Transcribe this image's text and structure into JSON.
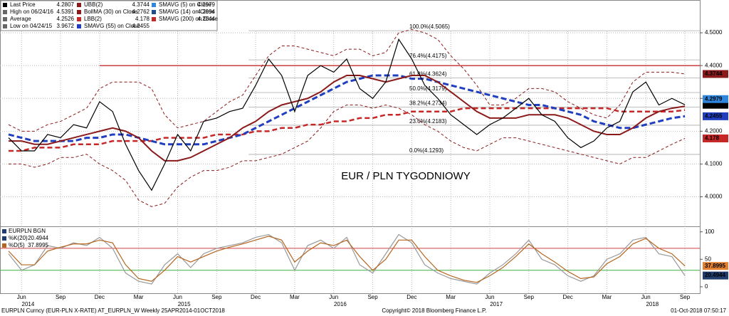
{
  "chart_data": [
    {
      "type": "line",
      "annotation": "EUR / PLN TYGODNIOWY",
      "categories": [
        null,
        "Jun",
        null,
        null,
        "Sep",
        null,
        null,
        "Dec",
        null,
        null,
        "Mar",
        null,
        null,
        "Jun",
        null,
        null,
        "Sep",
        null,
        null,
        "Dec",
        null,
        null,
        "Mar",
        null,
        null,
        "Jun",
        null,
        null,
        "Sep",
        null,
        null,
        "Dec",
        null,
        null,
        "Mar",
        null,
        null,
        "Jun",
        null,
        null,
        "Sep",
        null,
        null,
        "Dec",
        null,
        null,
        "Mar",
        null,
        null,
        "Jun",
        null,
        null,
        "Sep"
      ],
      "years": [
        "2014",
        "2015",
        "2016",
        "2017",
        "2018"
      ],
      "ylim": [
        3.91,
        4.6
      ],
      "yticks": [
        {
          "value": 4.0,
          "label": "4.0000"
        },
        {
          "value": 4.1,
          "label": "4.1000"
        },
        {
          "value": 4.2,
          "label": "4.2000"
        },
        {
          "value": 4.3,
          "label": "4.3000"
        },
        {
          "value": 4.4,
          "label": "4.4000"
        },
        {
          "value": 4.5,
          "label": "4.5000"
        }
      ],
      "grid": true,
      "hline": {
        "value": 4.4,
        "color": "#c00000"
      },
      "legend": [
        {
          "label": "Last Price",
          "value": 4.2807,
          "color": "#000000",
          "tag_color": "#000000"
        },
        {
          "label": "High on 06/24/16",
          "value": 4.5391,
          "color": "#666666"
        },
        {
          "label": "Average",
          "value": 4.2526,
          "color": "#666666"
        },
        {
          "label": "Low on 04/24/15",
          "value": 3.9672,
          "color": "#666666"
        },
        {
          "label": "UBB(2)",
          "value": 4.3744,
          "color": "#8b1a1a",
          "tag_color": "#8b1a1a"
        },
        {
          "label": "BollMA (30) on Close",
          "value": 4.2762,
          "color": "#8b1a1a"
        },
        {
          "label": "LBB(2)",
          "value": 4.178,
          "color": "#c62828",
          "tag_color": "#c62828"
        },
        {
          "label": "SMAVG (55) on Close",
          "value": 4.2455,
          "color": "#1f3fbf",
          "tag_color": "#1f3fbf"
        },
        {
          "label": "SMAVG (5) on Close",
          "value": 4.2979,
          "color": "#2e86de",
          "tag_color": "#2e86de"
        },
        {
          "label": "SMAVG (14) on Close",
          "value": 4.2994,
          "color": "#1a4f8b"
        },
        {
          "label": "SMAVG (200) on Close",
          "value": 4.2644,
          "color": "#c62828"
        }
      ],
      "fib_levels": [
        {
          "label": "100.0%(4.5065)",
          "value": 4.5065,
          "color": "#a01010"
        },
        {
          "label": "76.4%(4.4175)",
          "value": 4.4175,
          "color": "#999999"
        },
        {
          "label": "61.8%(4.3624)",
          "value": 4.3624,
          "color": "#2ca02c"
        },
        {
          "label": "50.0%(4.3179)",
          "value": 4.3179,
          "color": "#17a2b8"
        },
        {
          "label": "38.2%(4.2734)",
          "value": 4.2734,
          "color": "#2ca02c"
        },
        {
          "label": "23.6%(4.2183)",
          "value": 4.2183,
          "color": "#999999"
        },
        {
          "label": "0.0%(4.1293)",
          "value": 4.1293,
          "color": "#a01010"
        }
      ],
      "series": [
        {
          "color": "#8b1a1a",
          "width": 1,
          "dash": "4 3",
          "values": [
            4.22,
            4.2,
            4.2,
            4.22,
            4.23,
            4.25,
            4.27,
            4.33,
            4.35,
            4.35,
            4.35,
            4.33,
            4.25,
            4.21,
            4.22,
            4.23,
            4.26,
            4.29,
            4.31,
            4.37,
            4.43,
            4.46,
            4.46,
            4.45,
            4.44,
            4.43,
            4.45,
            4.45,
            4.43,
            4.44,
            4.5,
            4.51,
            4.5,
            4.48,
            4.43,
            4.39,
            4.34,
            4.28,
            4.28,
            4.3,
            4.33,
            4.33,
            4.32,
            4.29,
            4.27,
            4.25,
            4.24,
            4.28,
            4.35,
            4.38,
            4.38,
            4.38,
            4.3744
          ]
        },
        {
          "color": "#8b1a1a",
          "width": 1,
          "dash": "4 3",
          "values": [
            4.1,
            4.1,
            4.09,
            4.1,
            4.12,
            4.12,
            4.13,
            4.1,
            4.08,
            4.05,
            3.99,
            3.97,
            3.98,
            4.03,
            4.06,
            4.08,
            4.08,
            4.09,
            4.11,
            4.11,
            4.12,
            4.13,
            4.15,
            4.17,
            4.21,
            4.26,
            4.28,
            4.28,
            4.27,
            4.28,
            4.27,
            4.25,
            4.22,
            4.2,
            4.17,
            4.15,
            4.14,
            4.16,
            4.18,
            4.18,
            4.17,
            4.16,
            4.15,
            4.14,
            4.13,
            4.12,
            4.11,
            4.1,
            4.12,
            4.12,
            4.14,
            4.16,
            4.178
          ]
        },
        {
          "color": "#c62828",
          "width": 2.5,
          "dash": "7 4",
          "values": [
            4.14,
            4.14,
            4.15,
            4.15,
            4.15,
            4.16,
            4.16,
            4.16,
            4.17,
            4.17,
            4.17,
            4.17,
            4.18,
            4.18,
            4.18,
            4.18,
            4.19,
            4.19,
            4.19,
            4.2,
            4.2,
            4.21,
            4.21,
            4.22,
            4.22,
            4.23,
            4.23,
            4.24,
            4.24,
            4.25,
            4.25,
            4.26,
            4.26,
            4.26,
            4.26,
            4.27,
            4.27,
            4.27,
            4.27,
            4.27,
            4.27,
            4.27,
            4.27,
            4.27,
            4.27,
            4.27,
            4.27,
            4.26,
            4.26,
            4.26,
            4.26,
            4.26,
            4.2644
          ]
        },
        {
          "color": "#1f3fbf",
          "width": 3,
          "dash": "8 4",
          "values": [
            4.19,
            4.18,
            4.17,
            4.17,
            4.17,
            4.17,
            4.18,
            4.18,
            4.19,
            4.19,
            4.18,
            4.17,
            4.16,
            4.16,
            4.16,
            4.16,
            4.17,
            4.18,
            4.19,
            4.21,
            4.23,
            4.25,
            4.27,
            4.29,
            4.31,
            4.33,
            4.35,
            4.36,
            4.37,
            4.37,
            4.37,
            4.36,
            4.36,
            4.35,
            4.34,
            4.33,
            4.32,
            4.31,
            4.3,
            4.29,
            4.28,
            4.28,
            4.27,
            4.26,
            4.25,
            4.23,
            4.22,
            4.21,
            4.21,
            4.22,
            4.23,
            4.24,
            4.2455
          ]
        },
        {
          "color": "#8b1a1a",
          "width": 2,
          "dash": "",
          "values": [
            4.17,
            4.17,
            4.16,
            4.16,
            4.17,
            4.18,
            4.19,
            4.2,
            4.21,
            4.2,
            4.18,
            4.14,
            4.11,
            4.11,
            4.12,
            4.14,
            4.16,
            4.18,
            4.21,
            4.23,
            4.26,
            4.28,
            4.29,
            4.3,
            4.32,
            4.35,
            4.37,
            4.37,
            4.36,
            4.35,
            4.36,
            4.37,
            4.37,
            4.35,
            4.32,
            4.29,
            4.26,
            4.24,
            4.24,
            4.24,
            4.25,
            4.25,
            4.25,
            4.24,
            4.22,
            4.2,
            4.19,
            4.19,
            4.21,
            4.24,
            4.26,
            4.27,
            4.2762
          ]
        },
        {
          "color": "#000000",
          "width": 1.2,
          "dash": "",
          "values": [
            4.18,
            4.14,
            4.14,
            4.19,
            4.18,
            4.22,
            4.21,
            4.29,
            4.26,
            4.16,
            4.08,
            4.02,
            4.1,
            4.19,
            4.14,
            4.23,
            4.24,
            4.26,
            4.27,
            4.34,
            4.42,
            4.37,
            4.26,
            4.37,
            4.4,
            4.38,
            4.42,
            4.33,
            4.3,
            4.35,
            4.48,
            4.42,
            4.34,
            4.3,
            4.25,
            4.22,
            4.19,
            4.22,
            4.24,
            4.27,
            4.3,
            4.25,
            4.23,
            4.18,
            4.15,
            4.17,
            4.21,
            4.23,
            4.32,
            4.35,
            4.28,
            4.3,
            4.2807
          ]
        }
      ]
    },
    {
      "type": "line",
      "legend_title": "EURPLN BGN",
      "ylim": [
        -13,
        110
      ],
      "yticks": [
        0,
        50,
        100
      ],
      "hlines": [
        {
          "value": 70,
          "color": "#d04040"
        },
        {
          "value": 30,
          "color": "#40b040"
        }
      ],
      "legend": [
        {
          "label": "%K(20)",
          "value": 20.4944,
          "color": "#1f3c6e",
          "tag_color": "#1f3c6e"
        },
        {
          "label": "%D(5)",
          "value": 37.8995,
          "color": "#b5651d",
          "tag_color": "#e08030"
        }
      ],
      "series": [
        {
          "color": "#999999",
          "width": 1.2,
          "dash": "",
          "values": [
            60,
            30,
            40,
            75,
            70,
            80,
            75,
            90,
            70,
            25,
            10,
            5,
            40,
            60,
            35,
            60,
            70,
            75,
            80,
            90,
            95,
            80,
            30,
            75,
            85,
            70,
            90,
            40,
            25,
            60,
            95,
            80,
            40,
            25,
            15,
            10,
            5,
            25,
            40,
            60,
            85,
            50,
            40,
            20,
            10,
            20,
            50,
            60,
            85,
            90,
            60,
            55,
            20.4944
          ]
        },
        {
          "color": "#b5651d",
          "width": 1.2,
          "dash": "",
          "values": [
            65,
            40,
            40,
            65,
            72,
            78,
            78,
            85,
            80,
            40,
            15,
            10,
            30,
            55,
            45,
            55,
            65,
            72,
            78,
            85,
            92,
            85,
            45,
            65,
            80,
            75,
            85,
            55,
            30,
            50,
            85,
            85,
            55,
            30,
            20,
            12,
            8,
            20,
            35,
            55,
            78,
            60,
            45,
            28,
            15,
            18,
            42,
            55,
            78,
            88,
            70,
            60,
            37.8995
          ]
        }
      ]
    }
  ],
  "footer": {
    "left": "EURPLN Curncy (EUR-PLN X-RATE) AT_EURPLN_W Weekly 25APR2014-01OCT2018",
    "center": "Copyright© 2018 Bloomberg Finance L.P.",
    "right": "01-Oct-2018 07:50:17"
  }
}
